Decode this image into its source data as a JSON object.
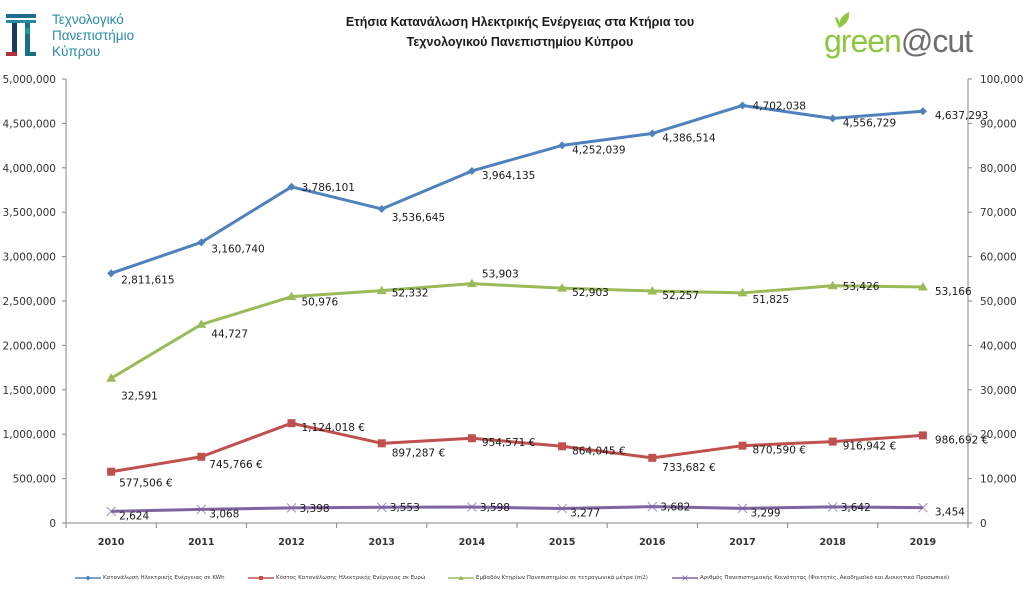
{
  "header": {
    "university_logo": {
      "icon": "university-monogram-icon",
      "lines": [
        "Τεχνολογικό",
        "Πανεπιστήμιο",
        "Κύπρου"
      ]
    },
    "title_lines": [
      "Ετήσια Κατανάλωση Ηλεκτρικής Ενέργειας στα Κτήρια του",
      "Τεχνολογικού Πανεπιστημίου Κύπρου"
    ],
    "green_logo": {
      "icon": "leaf-icon",
      "part1": "green",
      "part2": "@cut",
      "colors": {
        "green": "#8dc63f",
        "grey": "#6d6e70"
      }
    }
  },
  "chart_data": {
    "type": "line",
    "title": "Ετήσια Κατανάλωση Ηλεκτρικής Ενέργειας στα Κτήρια του Τεχνολογικού Πανεπιστημίου Κύπρου",
    "categories": [
      "2010",
      "2011",
      "2012",
      "2013",
      "2014",
      "2015",
      "2016",
      "2017",
      "2018",
      "2019"
    ],
    "y_left": {
      "range": [
        0,
        5000000
      ],
      "ticks": [
        0,
        500000,
        1000000,
        1500000,
        2000000,
        2500000,
        3000000,
        3500000,
        4000000,
        4500000,
        5000000
      ],
      "tick_labels": [
        "0",
        "500,000",
        "1,000,000",
        "1,500,000",
        "2,000,000",
        "2,500,000",
        "3,000,000",
        "3,500,000",
        "4,000,000",
        "4,500,000",
        "5,000,000"
      ]
    },
    "y_right": {
      "range": [
        0,
        100000
      ],
      "ticks": [
        0,
        10000,
        20000,
        30000,
        40000,
        50000,
        60000,
        70000,
        80000,
        90000,
        100000
      ],
      "tick_labels": [
        "0",
        "10,000",
        "20,000",
        "30,000",
        "40,000",
        "50,000",
        "60,000",
        "70,000",
        "80,000",
        "90,000",
        "100,000"
      ]
    },
    "grid": false,
    "legend_position": "bottom",
    "series": [
      {
        "name": "Κατανάλωση Ηλεκτρικής Ενέργειας σε KWh",
        "axis": "left",
        "color": "#4f81bd",
        "marker": "diamond",
        "values": [
          2811615,
          3160740,
          3786101,
          3536645,
          3964135,
          4252039,
          4386514,
          4702038,
          4556729,
          4637293
        ],
        "labels": [
          "2,811,615",
          "3,160,740",
          "3,786,101",
          "3,536,645",
          "3,964,135",
          "4,252,039",
          "4,386,514",
          "4,702,038",
          "4,556,729",
          "4,637,293"
        ]
      },
      {
        "name": "Κόστος Κατανάλωσης Ηλεκτρικής Ενέργειας σε Ευρώ",
        "axis": "left",
        "color": "#c0504d",
        "marker": "square",
        "values": [
          577506,
          745766,
          1124018,
          897287,
          954571,
          864045,
          733682,
          870590,
          916942,
          986692
        ],
        "labels": [
          "577,506 €",
          "745,766 €",
          "1,124,018 €",
          "897,287 €",
          "954,571 €",
          "864,045 €",
          "733,682 €",
          "870,590 €",
          "916,942 €",
          "986,692 €"
        ]
      },
      {
        "name": "Εμβαδόν Κτηρίων Πανεπιστημίου σε τετραγωνικά μέτρα (m2)",
        "axis": "right",
        "color": "#9bbb59",
        "marker": "triangle",
        "values": [
          32591,
          44727,
          50976,
          52332,
          53903,
          52903,
          52257,
          51825,
          53426,
          53166
        ],
        "labels": [
          "32,591",
          "44,727",
          "50,976",
          "52,332",
          "53,903",
          "52,903",
          "52,257",
          "51,825",
          "53,426",
          "53,166"
        ]
      },
      {
        "name": "Αριθμός Πανεπιστημιακής Κοινότητας (Φοιτητές, Ακαδημαϊκό και Διοικητικό Προσωπικό)",
        "axis": "right",
        "color": "#8064a2",
        "marker": "x",
        "values": [
          2624,
          3068,
          3398,
          3553,
          3598,
          3277,
          3682,
          3299,
          3642,
          3454
        ],
        "labels": [
          "2,624",
          "3,068",
          "3,398",
          "3,553",
          "3,598",
          "3,277",
          "3,682",
          "3,299",
          "3,642",
          "3,454"
        ]
      }
    ]
  }
}
